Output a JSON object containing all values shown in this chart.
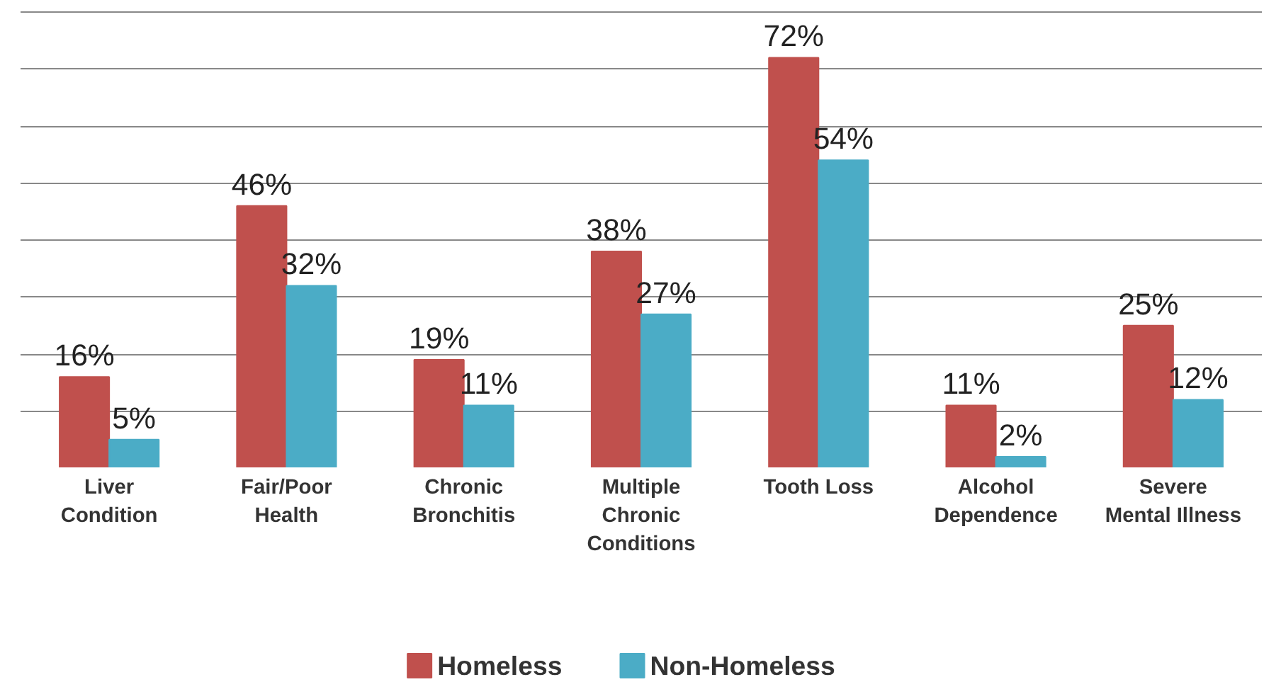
{
  "chart_data": {
    "type": "bar",
    "categories": [
      "Liver\nCondition",
      "Fair/Poor\nHealth",
      "Chronic\nBronchitis",
      "Multiple\nChronic\nConditions",
      "Tooth Loss",
      "Alcohol\nDependence",
      "Severe\nMental Illness"
    ],
    "series": [
      {
        "name": "Homeless",
        "color": "#c0504d",
        "values": [
          16,
          46,
          19,
          38,
          72,
          11,
          25
        ],
        "value_labels": [
          "16%",
          "46%",
          "19%",
          "38%",
          "72%",
          "11%",
          "25%"
        ]
      },
      {
        "name": "Non-Homeless",
        "color": "#4bacc6",
        "values": [
          5,
          32,
          11,
          27,
          54,
          2,
          12
        ],
        "value_labels": [
          "5%",
          "32%",
          "11%",
          "27%",
          "54%",
          "2%",
          "12%"
        ]
      }
    ],
    "ylim": [
      0,
      80
    ],
    "yticks": [
      {
        "value": 10,
        "label": null
      },
      {
        "value": 20,
        "label": null
      },
      {
        "value": 30,
        "label": null
      },
      {
        "value": 40,
        "label": null
      },
      {
        "value": 50,
        "label": null
      },
      {
        "value": 60,
        "label": null
      },
      {
        "value": 70,
        "label": null
      },
      {
        "value": 80,
        "label": null
      }
    ],
    "tick_labels": "x",
    "grid": "y",
    "legend": "bottom"
  }
}
